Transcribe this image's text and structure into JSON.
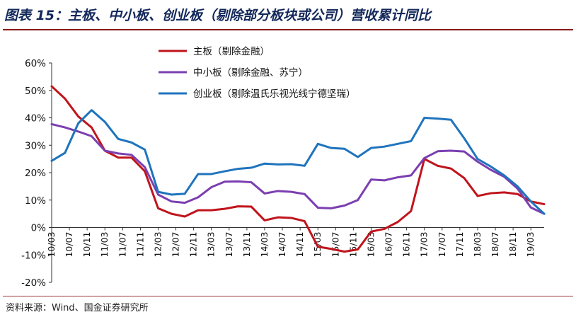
{
  "header": {
    "title": "图表 15：主板、中小板、创业板（剔除部分板块或公司）营收累计同比"
  },
  "footer": {
    "source": "资料来源：Wind、国金证券研究所"
  },
  "chart_data": {
    "type": "line",
    "title": "图表 15：主板、中小板、创业板（剔除部分板块或公司）营收累计同比",
    "xlabel": "",
    "ylabel": "",
    "ylim": [
      -20,
      60
    ],
    "yticks": [
      -20,
      -10,
      0,
      10,
      20,
      30,
      40,
      50,
      60
    ],
    "ytick_labels": [
      "-20%",
      "-10%",
      "0%",
      "10%",
      "20%",
      "30%",
      "40%",
      "50%",
      "60%"
    ],
    "grid": false,
    "legend_position": "top-center",
    "x": [
      "10/03",
      "10/06",
      "10/09",
      "10/12",
      "11/03",
      "11/06",
      "11/09",
      "11/12",
      "12/03",
      "12/06",
      "12/09",
      "12/12",
      "13/03",
      "13/06",
      "13/09",
      "13/12",
      "14/03",
      "14/06",
      "14/09",
      "14/12",
      "15/03",
      "15/06",
      "15/09",
      "15/12",
      "16/03",
      "16/06",
      "16/09",
      "16/12",
      "17/03",
      "17/06",
      "17/09",
      "17/12",
      "18/03",
      "18/06",
      "18/09",
      "18/12",
      "19/03",
      "19/06"
    ],
    "xtick_labels": [
      "10/03",
      "10/07",
      "10/11",
      "11/03",
      "11/07",
      "11/11",
      "12/03",
      "12/07",
      "12/11",
      "13/03",
      "13/07",
      "13/11",
      "14/03",
      "14/07",
      "14/11",
      "15/03",
      "15/07",
      "15/11",
      "16/03",
      "16/07",
      "16/11",
      "17/03",
      "17/07",
      "17/11",
      "18/03",
      "18/07",
      "18/11",
      "19/03"
    ],
    "series": [
      {
        "name": "主板（剔除金融）",
        "color": "#c0141c",
        "values": [
          51.5,
          47,
          40.5,
          36.5,
          28,
          25.5,
          25.5,
          20.5,
          7,
          5,
          4,
          6.3,
          6.3,
          6.8,
          7.7,
          7.6,
          2.6,
          3.7,
          3.5,
          2.3,
          -7,
          -7.8,
          -8.8,
          -8,
          -1.5,
          -0.5,
          2,
          6,
          25,
          22.5,
          21.5,
          18,
          11.5,
          12.5,
          12.8,
          12.2,
          9.5,
          8.5
        ]
      },
      {
        "name": "中小板（剔除金融、苏宁）",
        "color": "#7b3fb0",
        "values": [
          37.7,
          36.5,
          35,
          33.3,
          28,
          27,
          26.5,
          22,
          12,
          9.5,
          9,
          11,
          14.7,
          16.7,
          16.8,
          16.5,
          12.4,
          13.3,
          13,
          12.2,
          7.2,
          7,
          8,
          10,
          17.5,
          17.2,
          18.3,
          19,
          25.3,
          27.8,
          28,
          27.7,
          24,
          21,
          18.5,
          14.2,
          7.3,
          5
        ]
      },
      {
        "name": "创业板（剔除温氏乐视光线宁德坚瑞）",
        "color": "#1f74bd",
        "values": [
          24.3,
          27.2,
          38,
          42.8,
          38.5,
          32.3,
          31,
          28.4,
          13,
          12,
          12.3,
          19.5,
          19.5,
          20.5,
          21.4,
          21.8,
          23.3,
          23,
          23.1,
          22.5,
          30.5,
          29,
          28.7,
          25.7,
          29,
          29.5,
          30.5,
          31.5,
          40,
          39.7,
          39.3,
          32.5,
          25,
          22.2,
          19,
          15,
          9.5,
          5
        ]
      }
    ]
  }
}
